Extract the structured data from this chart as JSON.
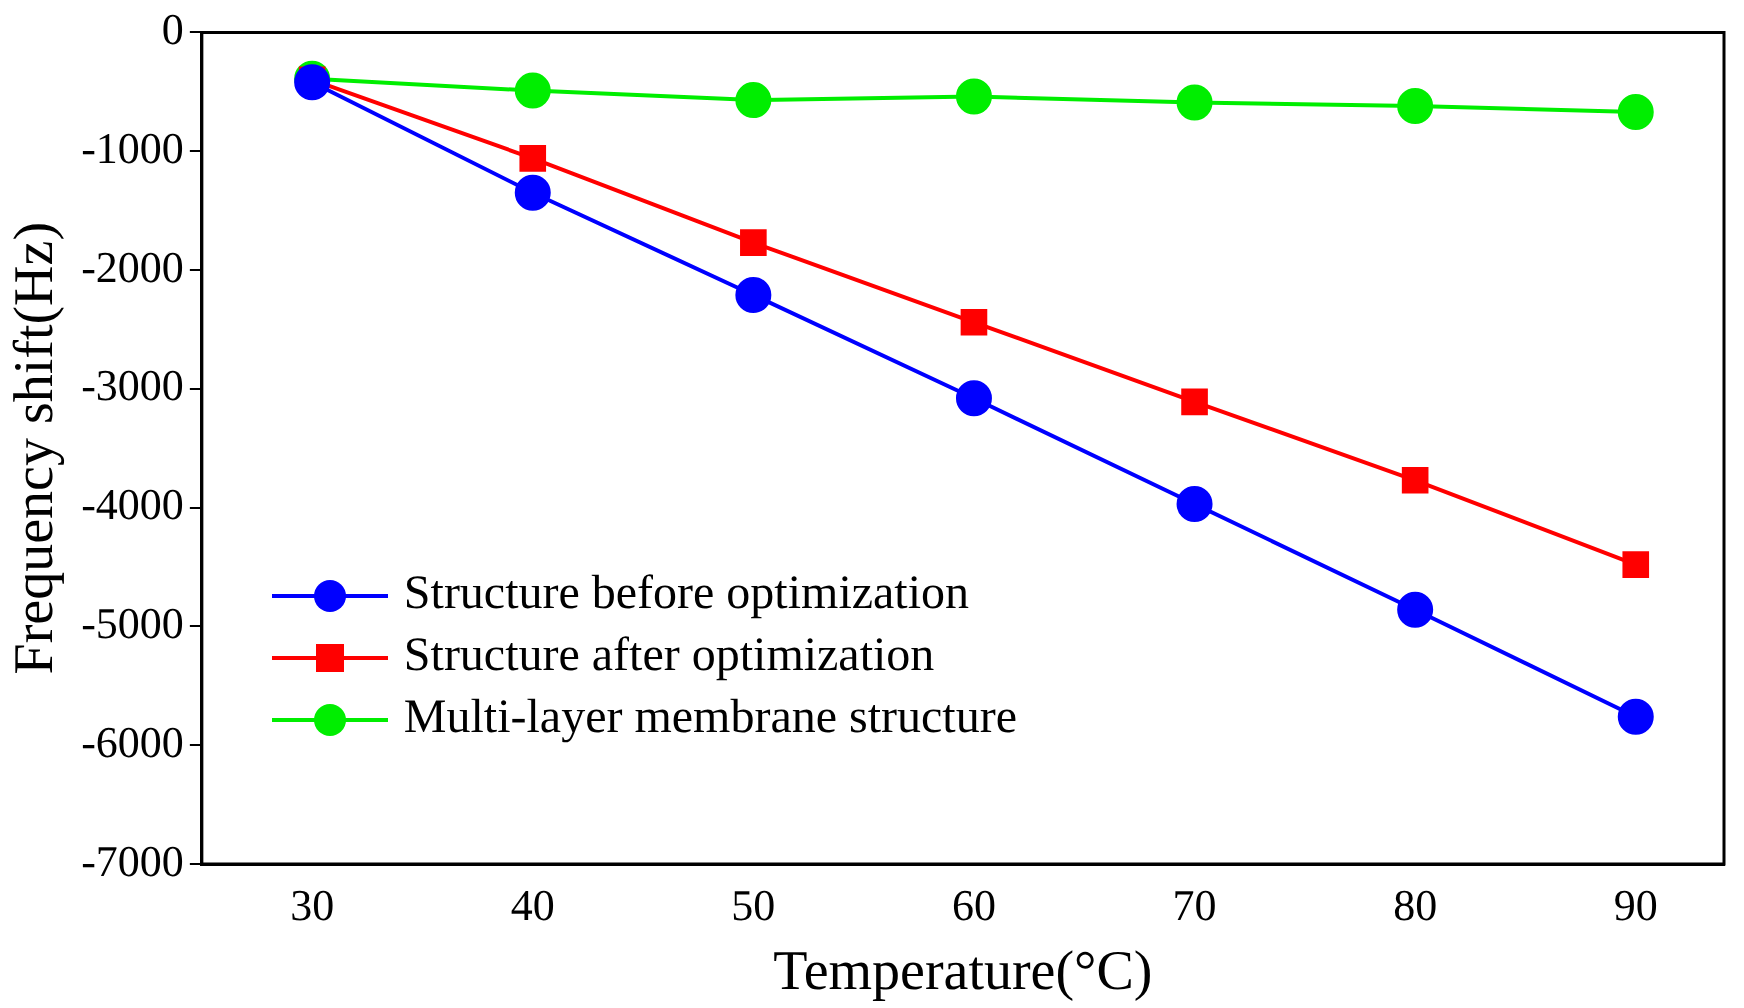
{
  "chart_data": {
    "type": "line",
    "xlabel": "Temperature(°C)",
    "ylabel": "Frequency shift(Hz)",
    "x": [
      30,
      40,
      50,
      60,
      70,
      80,
      90
    ],
    "series": [
      {
        "name": "Structure before optimization",
        "color": "#0000ff",
        "marker": "circle",
        "values": [
          -420,
          -1350,
          -2210,
          -3080,
          -3970,
          -4860,
          -5760
        ]
      },
      {
        "name": "Structure after optimization",
        "color": "#ff0000",
        "marker": "square",
        "values": [
          -400,
          -1060,
          -1770,
          -2440,
          -3110,
          -3770,
          -4480
        ]
      },
      {
        "name": "Multi-layer membrane structure",
        "color": "#00ee00",
        "marker": "circle",
        "values": [
          -390,
          -490,
          -570,
          -540,
          -590,
          -620,
          -670
        ]
      }
    ],
    "xlim": [
      25,
      94
    ],
    "xticks": [
      30,
      40,
      50,
      60,
      70,
      80,
      90
    ],
    "ylim": [
      -7000,
      0
    ],
    "yticks": [
      -7000,
      -6000,
      -5000,
      -4000,
      -3000,
      -2000,
      -1000,
      0
    ],
    "grid": false,
    "legend": "bottom left",
    "line_style": "solid"
  }
}
